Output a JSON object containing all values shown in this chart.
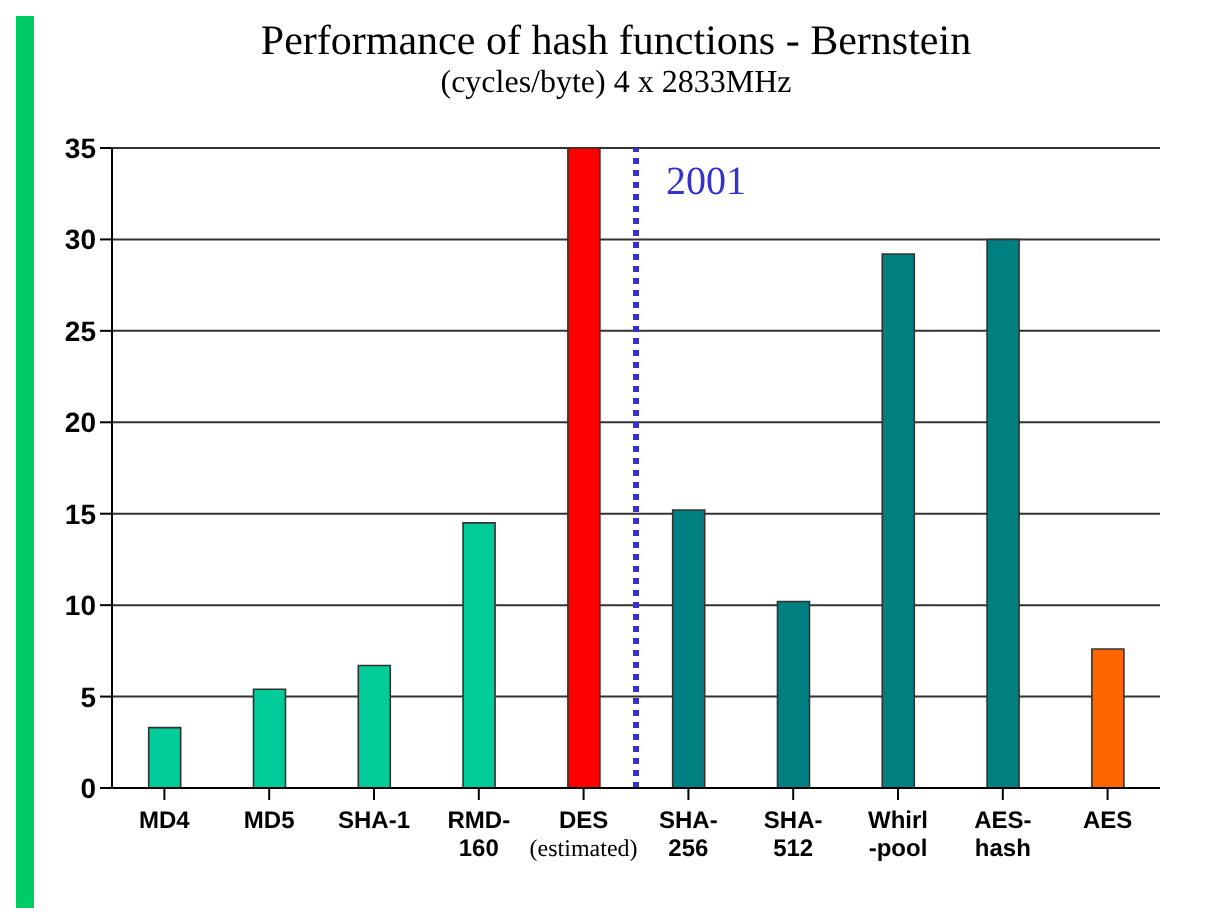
{
  "chart_data": {
    "type": "bar",
    "title": "Performance of hash functions - Bernstein",
    "subtitle": "(cycles/byte) 4 x 2833MHz",
    "categories": [
      "MD4",
      "MD5",
      "SHA-1",
      "RMD-\n160",
      "DES\n(estimated)",
      "SHA-\n256",
      "SHA-\n512",
      "Whirl\n-pool",
      "AES-\nhash",
      "AES"
    ],
    "values": [
      3.3,
      5.4,
      6.7,
      14.5,
      35.0,
      15.2,
      10.2,
      29.2,
      30.0,
      7.6
    ],
    "colors": [
      "#00cc99",
      "#00cc99",
      "#00cc99",
      "#00cc99",
      "#ff0000",
      "#008080",
      "#008080",
      "#008080",
      "#008080",
      "#ff6600"
    ],
    "ylim": [
      0,
      35
    ],
    "yticks": [
      0,
      5,
      10,
      15,
      20,
      25,
      30,
      35
    ],
    "grid": "y",
    "ref_lines": [
      {
        "axis": "x",
        "value": "DES\n(estimated)",
        "label": "2001",
        "color": "#3333cc",
        "line_style": "dotted"
      }
    ]
  }
}
